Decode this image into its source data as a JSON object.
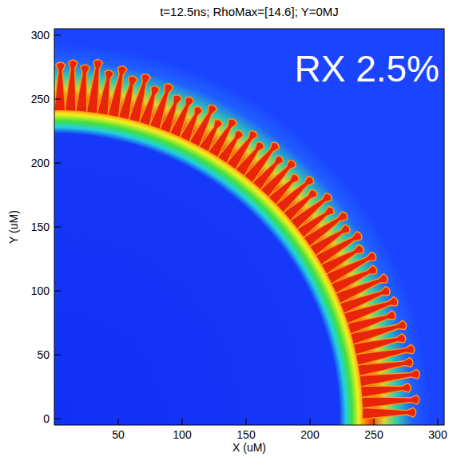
{
  "chart_data": {
    "type": "density_map",
    "title": "t=12.5ns; RhoMax=[14.6]; Y=0MJ",
    "annotation": "RX 2.5%",
    "x_label": "X (uM)",
    "y_label": "Y (uM)",
    "xlim": [
      0,
      305
    ],
    "ylim": [
      -5,
      305
    ],
    "xticks": [
      50,
      100,
      150,
      200,
      250,
      300
    ],
    "yticks": [
      0,
      50,
      100,
      150,
      200,
      250,
      300
    ],
    "shell": {
      "inner_radius": 226,
      "outer_radius": 244
    },
    "spikes": {
      "angles": [
        1,
        3,
        5,
        7,
        9,
        11,
        13,
        15,
        17,
        19,
        21,
        23,
        25,
        27,
        29,
        31,
        33,
        35,
        37,
        39,
        41,
        43,
        45,
        47,
        49,
        51,
        53,
        55,
        57,
        59,
        61,
        63,
        65,
        67,
        69,
        71,
        73,
        75,
        77,
        79,
        81,
        83,
        85,
        87,
        89
      ],
      "tip_radii": [
        284,
        287,
        281,
        289,
        285,
        288,
        283,
        286,
        280,
        285,
        282,
        284,
        279,
        283,
        277,
        281,
        276,
        280,
        274,
        279,
        272,
        277,
        270,
        276,
        272,
        278,
        271,
        275,
        269,
        274,
        268,
        276,
        270,
        274,
        272,
        278,
        273,
        280,
        276,
        282,
        277,
        284,
        279,
        282,
        280
      ]
    }
  }
}
